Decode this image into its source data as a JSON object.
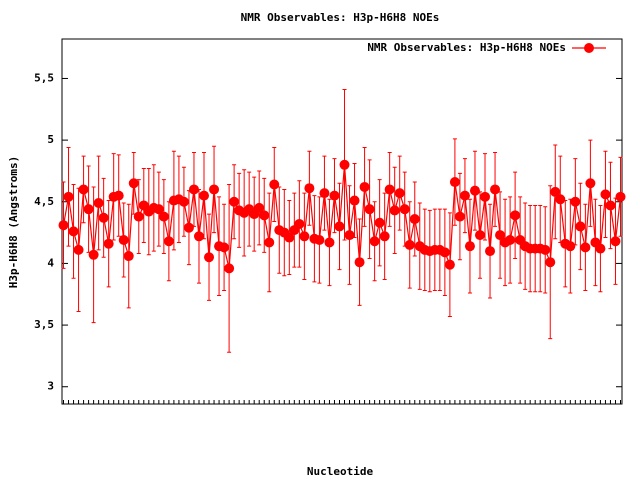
{
  "chart_data": {
    "type": "errorline",
    "title": "NMR Observables: H3p-H6H8 NOEs",
    "xlabel": "Nucleotide",
    "ylabel": "H3p-H6H8 (Angstroms)",
    "categories": [
      null,
      null,
      null,
      null,
      null,
      null,
      null,
      null,
      null,
      null,
      null,
      null,
      null,
      null,
      null,
      null,
      null,
      null,
      null,
      null,
      null,
      null,
      null,
      null,
      null,
      null,
      null,
      null,
      null,
      null,
      null,
      null,
      null,
      null,
      null,
      null,
      null,
      null,
      null,
      null,
      null,
      null,
      null,
      null,
      null,
      null,
      null,
      null,
      null,
      null,
      null,
      null,
      null,
      null,
      null,
      null,
      null,
      null,
      null,
      null,
      null,
      null,
      null,
      null,
      null,
      null,
      null,
      null,
      null,
      null,
      null,
      null,
      null,
      null,
      null,
      null,
      null,
      null,
      null,
      null,
      null,
      null,
      null,
      null,
      null,
      null,
      null,
      null,
      null,
      null,
      null,
      null,
      null,
      null,
      null,
      null,
      null,
      null,
      null,
      null,
      null,
      null,
      null,
      null,
      null,
      null,
      null,
      null,
      null,
      null,
      null,
      null
    ],
    "series": [
      {
        "name": "NMR Observables: H3p-H6H8 NOEs",
        "color": "#ff0000",
        "values": [
          4.31,
          4.54,
          4.26,
          4.11,
          4.6,
          4.44,
          4.07,
          4.49,
          4.37,
          4.16,
          4.54,
          4.55,
          4.19,
          4.06,
          4.65,
          4.38,
          4.47,
          4.42,
          4.45,
          4.44,
          4.38,
          4.18,
          4.51,
          4.52,
          4.5,
          4.29,
          4.6,
          4.22,
          4.55,
          4.05,
          4.6,
          4.14,
          4.13,
          3.96,
          4.5,
          4.43,
          4.41,
          4.44,
          4.4,
          4.45,
          4.39,
          4.17,
          4.64,
          4.27,
          4.25,
          4.21,
          4.27,
          4.32,
          4.22,
          4.61,
          4.2,
          4.19,
          4.57,
          4.17,
          4.55,
          4.3,
          4.8,
          4.23,
          4.51,
          4.01,
          4.62,
          4.44,
          4.18,
          4.33,
          4.22,
          4.6,
          4.43,
          4.57,
          4.44,
          4.15,
          4.36,
          4.14,
          4.11,
          4.1,
          4.11,
          4.11,
          4.09,
          3.99,
          4.66,
          4.38,
          4.55,
          4.14,
          4.59,
          4.23,
          4.54,
          4.1,
          4.6,
          4.23,
          4.17,
          4.19,
          4.39,
          4.19,
          4.14,
          4.12,
          4.12,
          4.12,
          4.11,
          4.01,
          4.58,
          4.52,
          4.16,
          4.14,
          4.5,
          4.3,
          4.13,
          4.65,
          4.17,
          4.12,
          4.56,
          4.47,
          4.18,
          4.54
        ],
        "errors": [
          0.35,
          0.4,
          0.38,
          0.5,
          0.27,
          0.35,
          0.55,
          0.38,
          0.32,
          0.35,
          0.35,
          0.33,
          0.3,
          0.42,
          0.25,
          0.3,
          0.3,
          0.35,
          0.35,
          0.3,
          0.3,
          0.32,
          0.4,
          0.35,
          0.28,
          0.3,
          0.3,
          0.38,
          0.35,
          0.35,
          0.35,
          0.4,
          0.35,
          0.68,
          0.3,
          0.3,
          0.35,
          0.3,
          0.3,
          0.3,
          0.3,
          0.4,
          0.3,
          0.35,
          0.35,
          0.3,
          0.3,
          0.35,
          0.35,
          0.3,
          0.35,
          0.35,
          0.3,
          0.35,
          0.3,
          0.35,
          0.61,
          0.4,
          0.3,
          0.35,
          0.32,
          0.4,
          0.32,
          0.35,
          0.35,
          0.3,
          0.35,
          0.3,
          0.3,
          0.35,
          0.3,
          0.35,
          0.33,
          0.33,
          0.33,
          0.33,
          0.35,
          0.42,
          0.35,
          0.35,
          0.3,
          0.38,
          0.32,
          0.35,
          0.35,
          0.38,
          0.3,
          0.35,
          0.35,
          0.35,
          0.35,
          0.35,
          0.35,
          0.35,
          0.35,
          0.35,
          0.35,
          0.62,
          0.38,
          0.35,
          0.35,
          0.38,
          0.35,
          0.35,
          0.35,
          0.35,
          0.35,
          0.35,
          0.35,
          0.35,
          0.35,
          0.32
        ]
      }
    ],
    "ylim": [
      2.86,
      5.82
    ],
    "yticks": [
      3,
      {
        "value": 3.5,
        "label": "3,5"
      },
      4,
      {
        "value": 4.5,
        "label": "4,5"
      },
      5,
      {
        "value": 5.5,
        "label": "5,5"
      }
    ],
    "grid": false,
    "legend": "top-right"
  }
}
